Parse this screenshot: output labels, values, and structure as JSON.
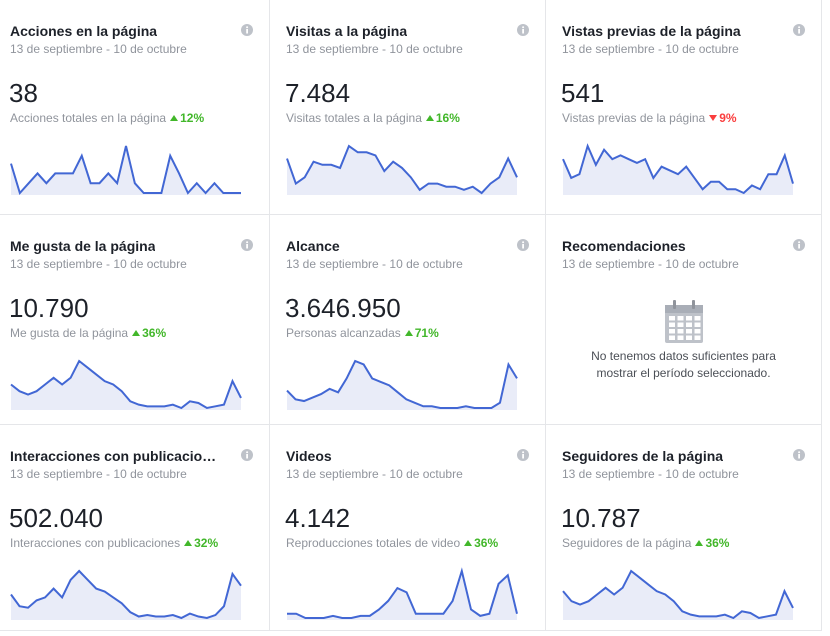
{
  "cards": [
    {
      "title": "Acciones en la página",
      "date": "13 de septiembre - 10 de octubre",
      "value": "38",
      "metric_label": "Acciones totales en la página",
      "change": {
        "direction": "up",
        "label": "12%"
      },
      "sparkline": [
        35,
        5,
        15,
        25,
        15,
        25,
        25,
        25,
        43,
        15,
        15,
        25,
        15,
        53,
        15,
        5,
        5,
        5,
        43,
        25,
        5,
        15,
        5,
        15,
        5,
        5,
        5
      ]
    },
    {
      "title": "Visitas a la página",
      "date": "13 de septiembre - 10 de octubre",
      "value": "7.484",
      "metric_label": "Visitas totales a la página",
      "change": {
        "direction": "up",
        "label": "16%"
      },
      "sparkline": [
        18,
        10,
        12,
        17,
        16,
        16,
        15,
        22,
        20,
        20,
        19,
        14,
        17,
        15,
        12,
        8,
        10,
        10,
        9,
        9,
        8,
        9,
        7,
        10,
        12,
        18,
        12
      ]
    },
    {
      "title": "Vistas previas de la página",
      "date": "13 de septiembre - 10 de octubre",
      "value": "541",
      "metric_label": "Vistas previas de la página",
      "change": {
        "direction": "down",
        "label": "9%"
      },
      "sparkline": [
        28,
        18,
        20,
        35,
        25,
        33,
        28,
        30,
        28,
        26,
        28,
        18,
        24,
        22,
        20,
        24,
        18,
        12,
        16,
        16,
        12,
        12,
        10,
        14,
        12,
        20,
        20,
        30,
        15
      ]
    },
    {
      "title": "Me gusta de la página",
      "date": "13 de septiembre - 10 de octubre",
      "value": "10.790",
      "metric_label": "Me gusta de la página",
      "change": {
        "direction": "up",
        "label": "36%"
      },
      "sparkline": [
        20,
        16,
        14,
        16,
        20,
        24,
        20,
        24,
        34,
        30,
        26,
        22,
        20,
        16,
        10,
        8,
        7,
        7,
        7,
        8,
        6,
        10,
        9,
        6,
        7,
        8,
        22,
        12
      ]
    },
    {
      "title": "Alcance",
      "date": "13 de septiembre - 10 de octubre",
      "value": "3.646.950",
      "metric_label": "Personas alcanzadas",
      "change": {
        "direction": "up",
        "label": "71%"
      },
      "sparkline": [
        15,
        10,
        9,
        11,
        13,
        16,
        14,
        22,
        32,
        30,
        22,
        20,
        18,
        14,
        10,
        8,
        6,
        6,
        5,
        5,
        5,
        6,
        5,
        5,
        5,
        8,
        30,
        22
      ]
    },
    {
      "title": "Recomendaciones",
      "date": "13 de septiembre - 10 de octubre",
      "message": [
        "No tenemos datos suficientes para",
        "mostrar el período seleccionado."
      ]
    },
    {
      "title": "Interacciones con publicacio…",
      "date": "13 de septiembre - 10 de octubre",
      "value": "502.040",
      "metric_label": "Interacciones con publicaciones",
      "change": {
        "direction": "up",
        "label": "32%"
      },
      "sparkline": [
        22,
        14,
        13,
        18,
        20,
        26,
        20,
        32,
        38,
        32,
        26,
        24,
        20,
        16,
        10,
        7,
        8,
        7,
        7,
        8,
        6,
        9,
        7,
        6,
        8,
        14,
        36,
        28
      ]
    },
    {
      "title": "Videos",
      "date": "13 de septiembre - 10 de octubre",
      "value": "4.142",
      "metric_label": "Reproducciones totales de video",
      "change": {
        "direction": "up",
        "label": "36%"
      },
      "sparkline": [
        8,
        8,
        6,
        6,
        6,
        7,
        6,
        6,
        7,
        7,
        10,
        14,
        20,
        18,
        8,
        8,
        8,
        8,
        14,
        28,
        10,
        7,
        8,
        22,
        26,
        8
      ]
    },
    {
      "title": "Seguidores de la página",
      "date": "13 de septiembre - 10 de octubre",
      "value": "10.787",
      "metric_label": "Seguidores de la página",
      "change": {
        "direction": "up",
        "label": "36%"
      },
      "sparkline": [
        22,
        16,
        14,
        16,
        20,
        24,
        20,
        24,
        34,
        30,
        26,
        22,
        20,
        16,
        10,
        8,
        7,
        7,
        7,
        8,
        6,
        10,
        9,
        6,
        7,
        8,
        22,
        12
      ]
    }
  ]
}
